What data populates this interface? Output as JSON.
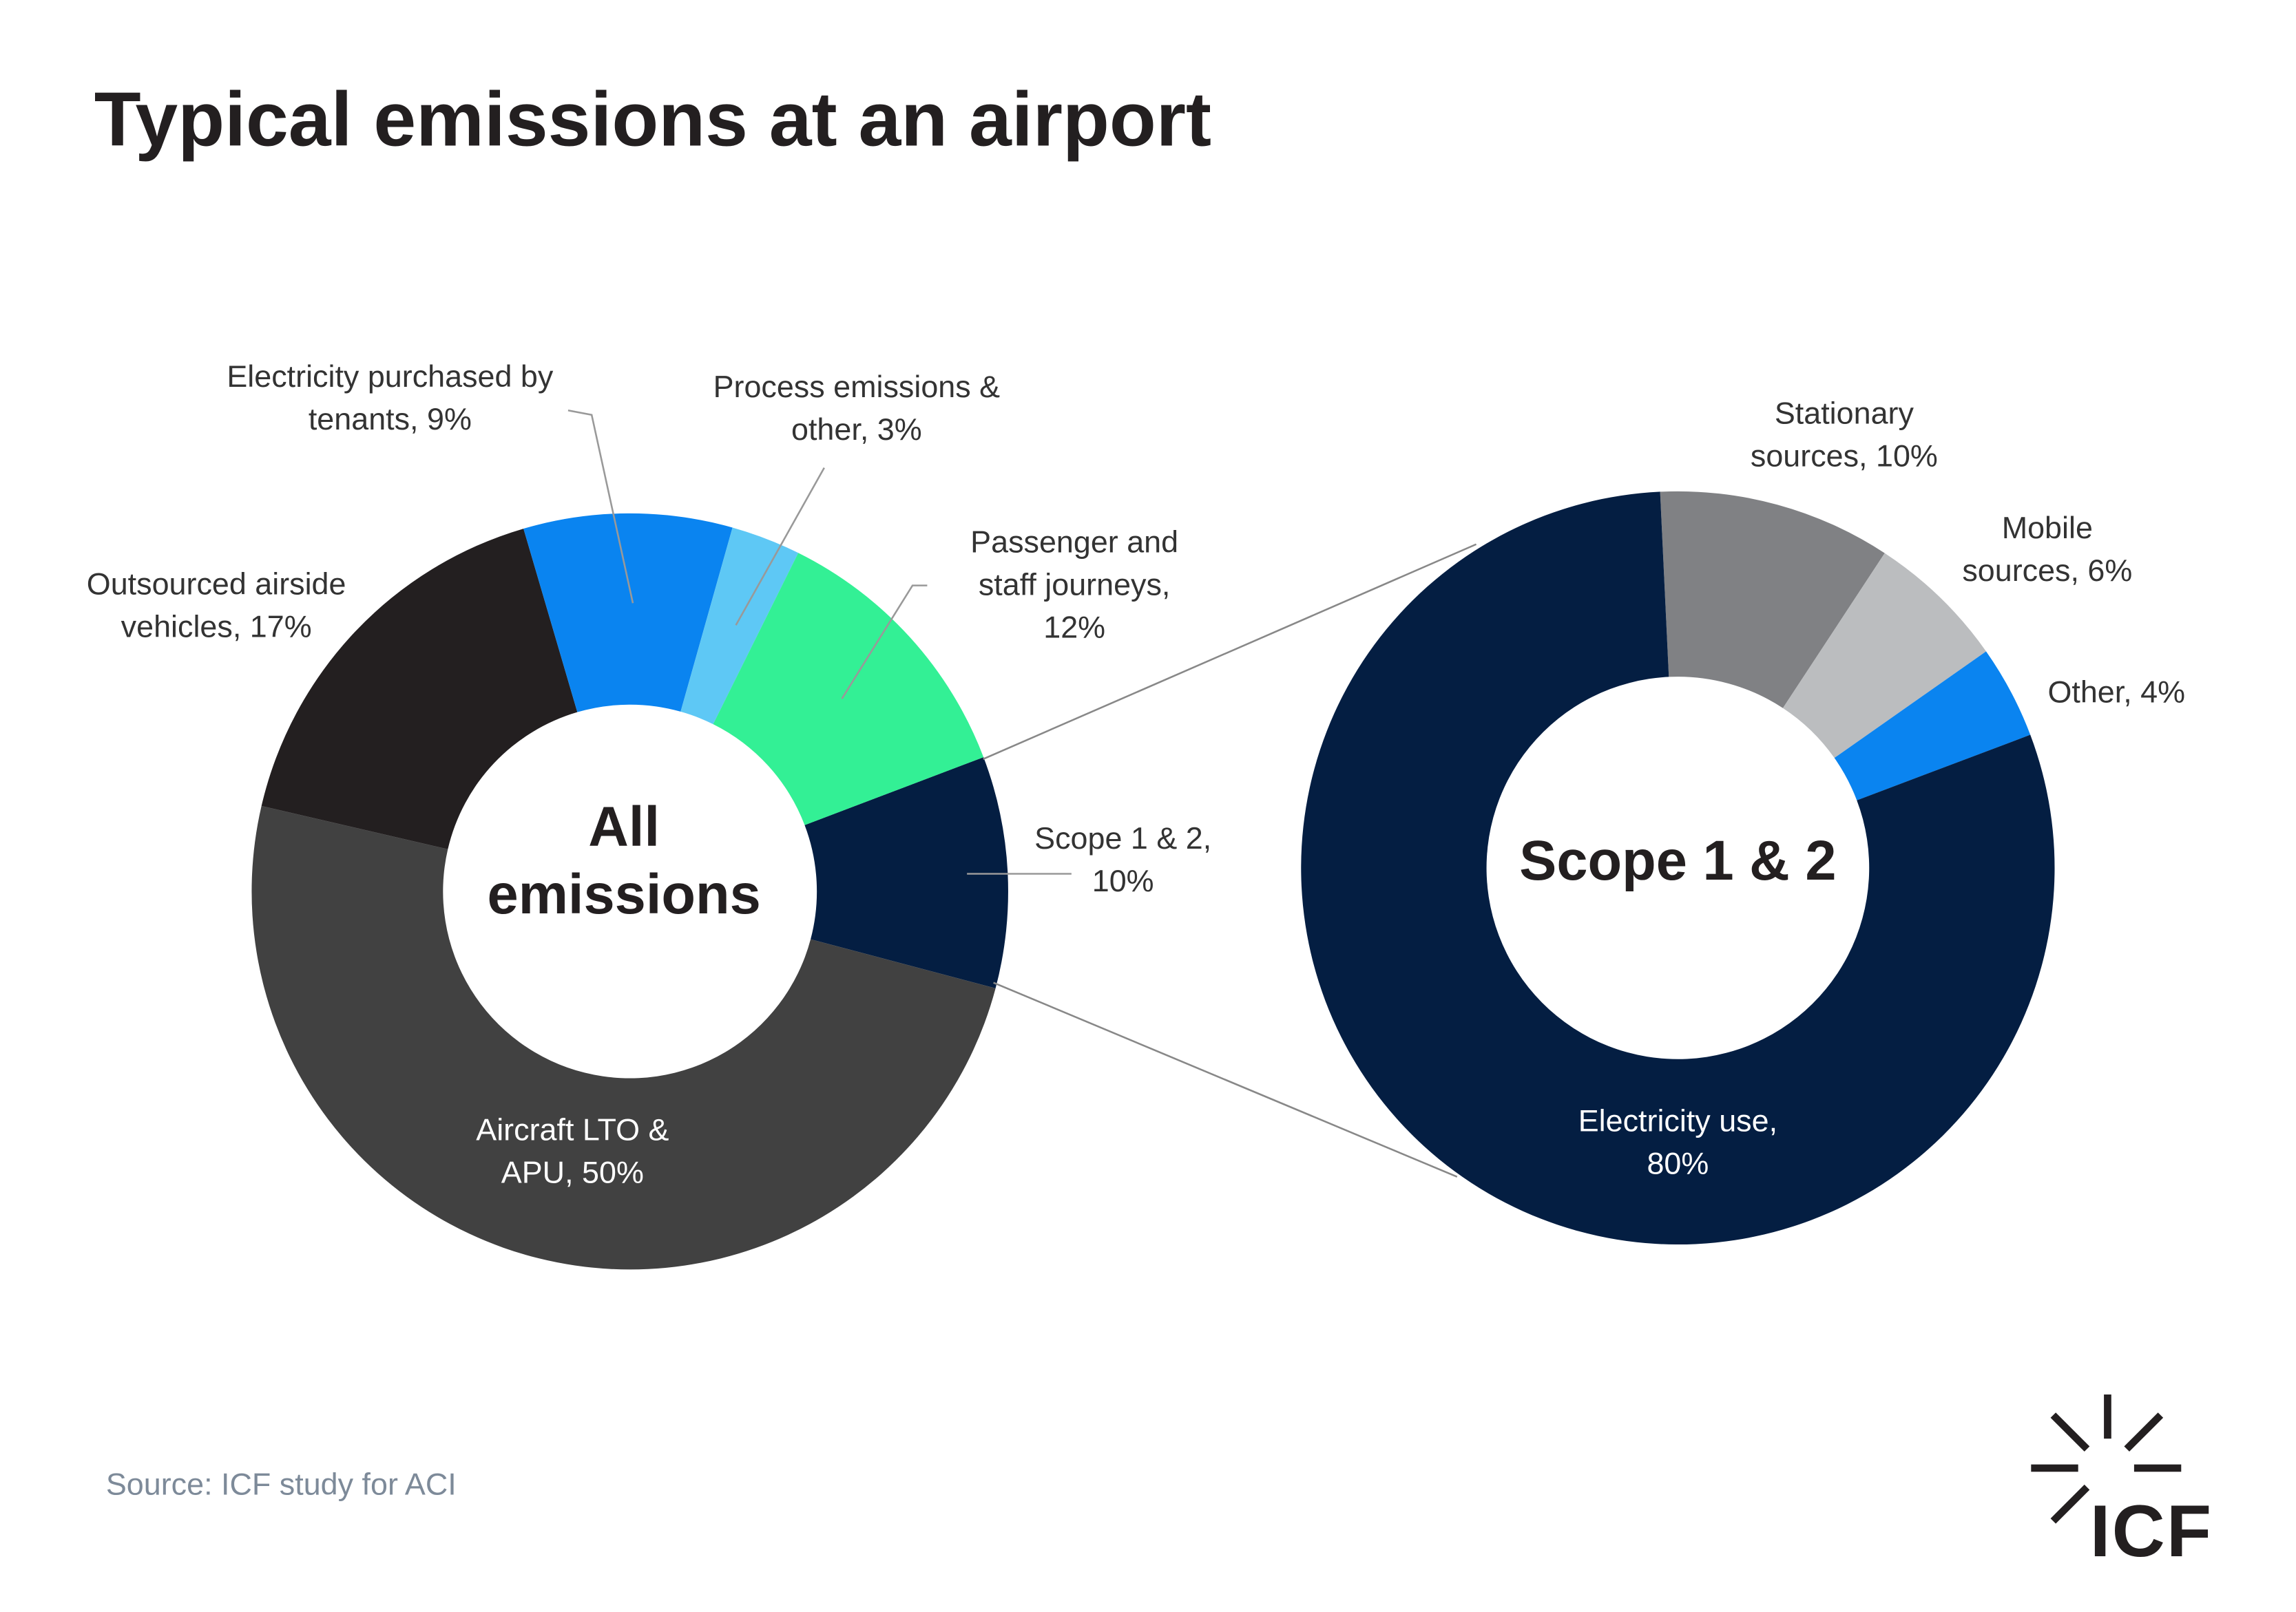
{
  "title": "Typical emissions at an airport",
  "source": "Source: ICF study for ACI",
  "logo": "ICF",
  "chart_data": [
    {
      "type": "donut",
      "center_label": "All emissions",
      "categories": [
        "Scope 1 & 2",
        "Aircraft LTO & APU",
        "Outsourced airside vehicles",
        "Electricity purchased by tenants",
        "Process emissions & other",
        "Passenger and staff journeys"
      ],
      "values": [
        10,
        50,
        17,
        9,
        3,
        12
      ],
      "value_labels": [
        "Scope 1 & 2, 10%",
        "Aircraft LTO & APU, 50%",
        "Outsourced airside vehicles, 17%",
        "Electricity purchased by tenants, 9%",
        "Process emissions & other, 3%",
        "Passenger and staff journeys, 12%"
      ],
      "colors": [
        "#041e42",
        "#414141",
        "#231f20",
        "#0a84f0",
        "#5ec8f5",
        "#33f095"
      ]
    },
    {
      "type": "donut",
      "center_label": "Scope 1 & 2",
      "categories": [
        "Stationary sources",
        "Mobile sources",
        "Other",
        "Electricity use"
      ],
      "values": [
        10,
        6,
        4,
        80
      ],
      "value_labels": [
        "Stationary sources, 10%",
        "Mobile sources, 6%",
        "Other, 4%",
        "Electricity use, 80%"
      ],
      "colors": [
        "#808184",
        "#bbbdbf",
        "#0a84f0",
        "#041e42"
      ]
    }
  ]
}
